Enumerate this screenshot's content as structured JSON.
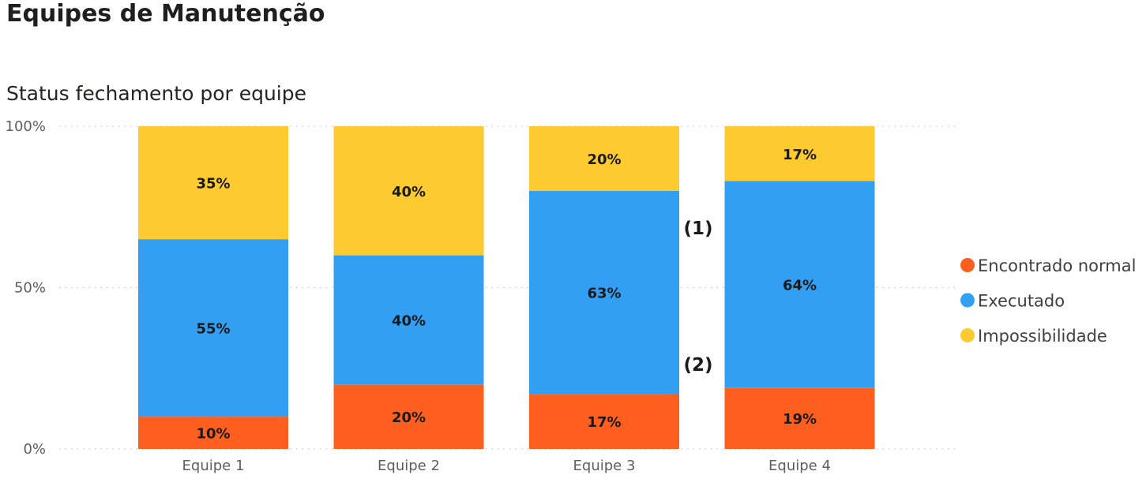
{
  "page": {
    "title": "Equipes de Manutenção"
  },
  "chart_data": {
    "type": "bar",
    "stacked": "percent",
    "title": "Status fechamento por equipe",
    "categories": [
      "Equipe 1",
      "Equipe 2",
      "Equipe 3",
      "Equipe 4"
    ],
    "series": [
      {
        "name": "Encontrado normal",
        "color": "#fe5f1e",
        "values": [
          10,
          20,
          17,
          19
        ]
      },
      {
        "name": "Executado",
        "color": "#339ff3",
        "values": [
          55,
          40,
          63,
          64
        ]
      },
      {
        "name": "Impossibilidade",
        "color": "#fdcb30",
        "values": [
          35,
          40,
          20,
          17
        ]
      }
    ],
    "ylim": [
      0,
      100
    ],
    "yticks": [
      "0%",
      "50%",
      "100%"
    ],
    "grid": true,
    "legend": "right",
    "annotations": [
      "(1)",
      "(2)"
    ]
  }
}
